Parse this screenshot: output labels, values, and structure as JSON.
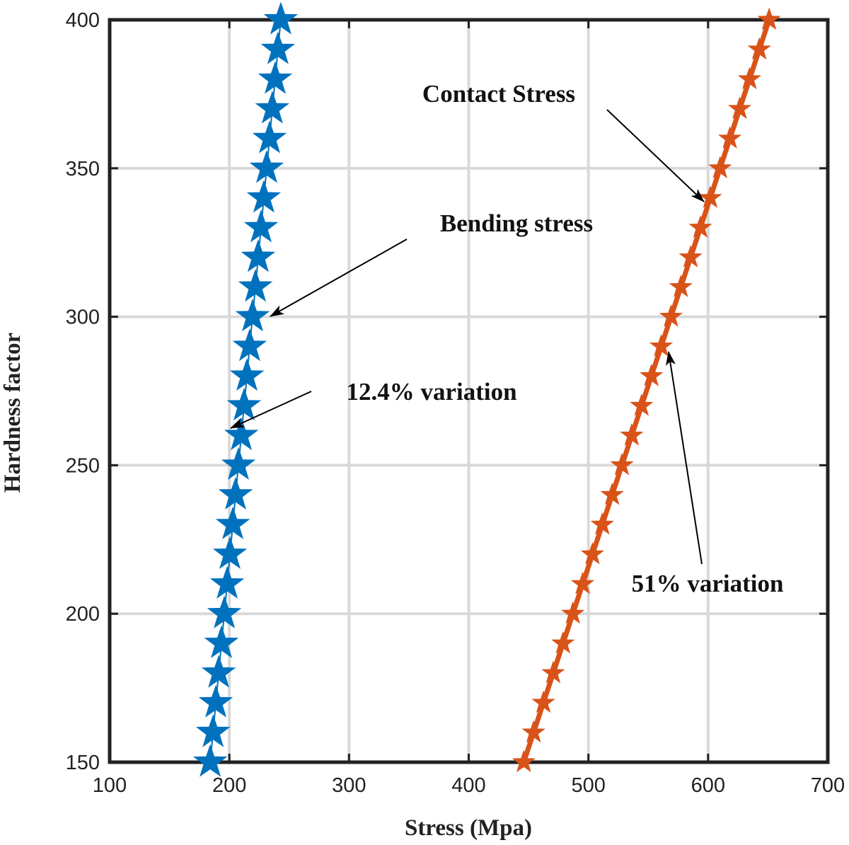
{
  "chart_data": {
    "type": "line",
    "xlabel": "Stress (Mpa)",
    "ylabel": "Hardness factor",
    "y": [
      150,
      160,
      170,
      180,
      190,
      200,
      210,
      220,
      230,
      240,
      250,
      260,
      270,
      280,
      290,
      300,
      310,
      320,
      330,
      340,
      350,
      360,
      370,
      380,
      390,
      400
    ],
    "series": [
      {
        "name": "Bending stress",
        "color": "#0072BD",
        "x": [
          184,
          186.4,
          188.7,
          191.1,
          193.4,
          195.8,
          198.2,
          200.5,
          202.9,
          205.2,
          207.6,
          210,
          212.3,
          214.7,
          217,
          219.4,
          221.8,
          224.1,
          226.5,
          228.8,
          231.2,
          233.6,
          235.9,
          238.3,
          240.6,
          243
        ]
      },
      {
        "name": "Contact Stress",
        "color": "#D95319",
        "x": [
          446,
          454.2,
          462.4,
          470.6,
          478.8,
          487,
          495.2,
          503.4,
          511.6,
          519.8,
          528,
          536.2,
          544.4,
          552.6,
          560.8,
          569,
          577.2,
          585.4,
          593.6,
          601.8,
          610,
          618.2,
          626.4,
          634.6,
          642.8,
          651
        ]
      }
    ],
    "annotations": [
      "12.4% variation",
      "51% variation"
    ],
    "xlim": [
      100,
      700
    ],
    "xticks": [
      100,
      200,
      300,
      400,
      500,
      600,
      700
    ],
    "ylim": [
      150,
      400
    ],
    "yticks": [
      150,
      200,
      250,
      300,
      350,
      400
    ],
    "grid": true
  }
}
